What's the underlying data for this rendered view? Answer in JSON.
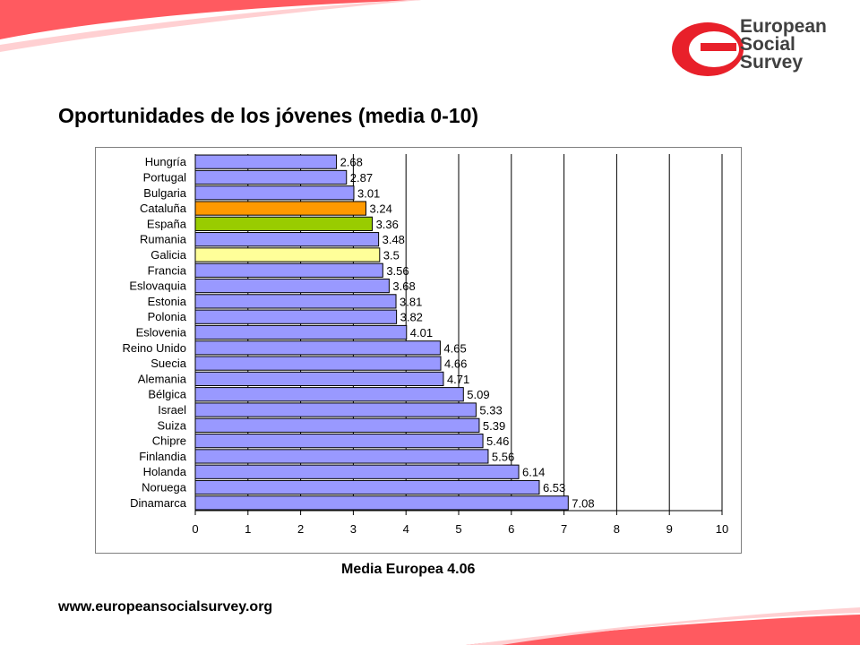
{
  "slide": {
    "title": "Oportunidades de los jóvenes (media 0-10)",
    "footnote": "Media Europea 4.06",
    "url": "www.europeansocialsurvey.org"
  },
  "logo": {
    "line1": "European",
    "line2": "Social",
    "line3": "Survey"
  },
  "colors": {
    "default_bar": "#9999ff",
    "cataluna_bar": "#ff9900",
    "espana_bar": "#99cc00",
    "galicia_bar": "#ffff99",
    "accent_red": "#e8202a",
    "decor_pink": "#ff5a60"
  },
  "chart_data": {
    "type": "bar",
    "orientation": "horizontal",
    "title": "",
    "xlabel": "",
    "ylabel": "",
    "xlim": [
      0,
      10
    ],
    "x_ticks": [
      "0",
      "1",
      "2",
      "3",
      "4",
      "5",
      "6",
      "7",
      "8",
      "9",
      "10"
    ],
    "grid": true,
    "legend": "none",
    "categories": [
      "Hungría",
      "Portugal",
      "Bulgaria",
      "Cataluña",
      "España",
      "Rumania",
      "Galicia",
      "Francia",
      "Eslovaquia",
      "Estonia",
      "Polonia",
      "Eslovenia",
      "Reino Unido",
      "Suecia",
      "Alemania",
      "Bélgica",
      "Israel",
      "Suiza",
      "Chipre",
      "Finlandia",
      "Holanda",
      "Noruega",
      "Dinamarca"
    ],
    "values": [
      2.68,
      2.87,
      3.01,
      3.24,
      3.36,
      3.48,
      3.5,
      3.56,
      3.68,
      3.81,
      3.82,
      4.01,
      4.65,
      4.66,
      4.71,
      5.09,
      5.33,
      5.39,
      5.46,
      5.56,
      6.14,
      6.53,
      7.08
    ],
    "value_labels": [
      "2.68",
      "2.87",
      "3.01",
      "3.24",
      "3.36",
      "3.48",
      "3.5",
      "3.56",
      "3.68",
      "3.81",
      "3.82",
      "4.01",
      "4.65",
      "4.66",
      "4.71",
      "5.09",
      "5.33",
      "5.39",
      "5.46",
      "5.56",
      "6.14",
      "6.53",
      "7.08"
    ],
    "bar_colors": [
      "#9999ff",
      "#9999ff",
      "#9999ff",
      "#ff9900",
      "#99cc00",
      "#9999ff",
      "#ffff99",
      "#9999ff",
      "#9999ff",
      "#9999ff",
      "#9999ff",
      "#9999ff",
      "#9999ff",
      "#9999ff",
      "#9999ff",
      "#9999ff",
      "#9999ff",
      "#9999ff",
      "#9999ff",
      "#9999ff",
      "#9999ff",
      "#9999ff",
      "#9999ff"
    ]
  }
}
